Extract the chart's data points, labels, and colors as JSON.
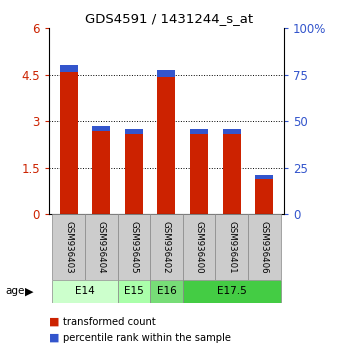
{
  "title": "GDS4591 / 1431244_s_at",
  "samples": [
    "GSM936403",
    "GSM936404",
    "GSM936405",
    "GSM936402",
    "GSM936400",
    "GSM936401",
    "GSM936406"
  ],
  "red_values": [
    4.8,
    2.85,
    2.75,
    4.65,
    2.75,
    2.75,
    1.25
  ],
  "blue_heights": [
    0.22,
    0.18,
    0.15,
    0.22,
    0.15,
    0.17,
    0.1
  ],
  "left_yticks": [
    0,
    1.5,
    3,
    4.5,
    6
  ],
  "right_yticks": [
    0,
    25,
    50,
    75,
    100
  ],
  "right_ylabels": [
    "0",
    "25",
    "50",
    "75",
    "100%"
  ],
  "ylim": [
    0,
    6
  ],
  "right_ylim": [
    0,
    100
  ],
  "age_groups": [
    {
      "label": "E14",
      "start": 0,
      "end": 1,
      "color": "#ccffcc"
    },
    {
      "label": "E15",
      "start": 2,
      "end": 2,
      "color": "#aaffaa"
    },
    {
      "label": "E16",
      "start": 3,
      "end": 3,
      "color": "#77dd77"
    },
    {
      "label": "E17.5",
      "start": 4,
      "end": 6,
      "color": "#44cc44"
    }
  ],
  "bar_width": 0.55,
  "red_color": "#cc2200",
  "blue_color": "#3355cc",
  "bg_color": "#ffffff",
  "sample_bg": "#cccccc",
  "legend_red": "transformed count",
  "legend_blue": "percentile rank within the sample",
  "left_tick_color": "#cc2200",
  "right_tick_color": "#3355cc"
}
